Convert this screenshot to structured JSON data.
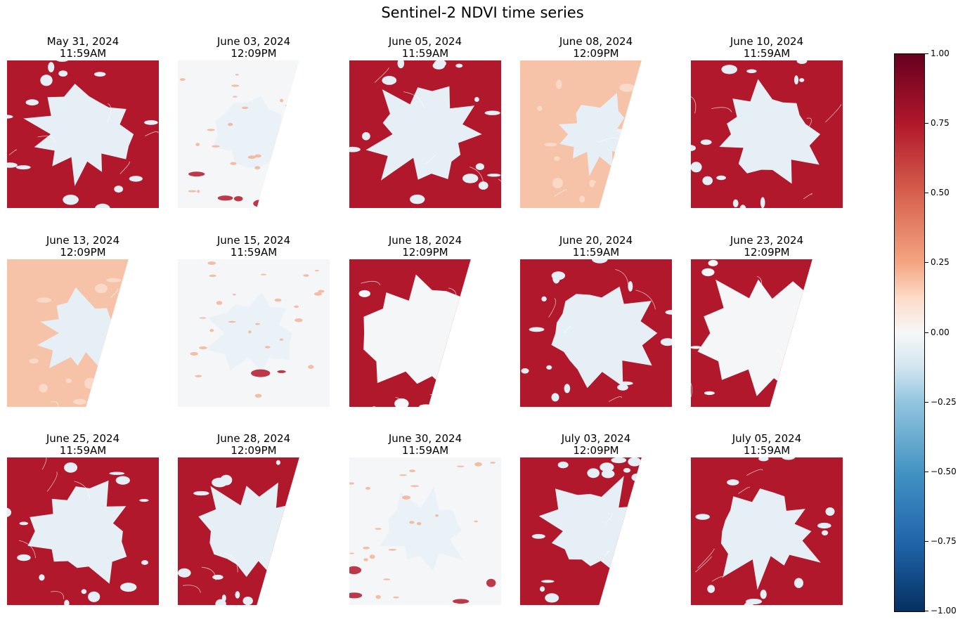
{
  "chart_data": {
    "type": "heatmap",
    "title": "Sentinel-2 NDVI time series",
    "layout": {
      "rows": 3,
      "columns": 5
    },
    "panels": [
      {
        "date": "May 31, 2024",
        "time": "11:59AM",
        "coverage": "full",
        "pattern": "vegetated"
      },
      {
        "date": "June 03, 2024",
        "time": "12:09PM",
        "coverage": "partial",
        "pattern": "cloudy"
      },
      {
        "date": "June 05, 2024",
        "time": "11:59AM",
        "coverage": "full",
        "pattern": "vegetated"
      },
      {
        "date": "June 08, 2024",
        "time": "12:09PM",
        "coverage": "partial",
        "pattern": "hazy"
      },
      {
        "date": "June 10, 2024",
        "time": "11:59AM",
        "coverage": "full",
        "pattern": "vegetated"
      },
      {
        "date": "June 13, 2024",
        "time": "12:09PM",
        "coverage": "partial",
        "pattern": "hazy"
      },
      {
        "date": "June 15, 2024",
        "time": "11:59AM",
        "coverage": "full",
        "pattern": "cloudy"
      },
      {
        "date": "June 18, 2024",
        "time": "12:09PM",
        "coverage": "partial",
        "pattern": "mixed"
      },
      {
        "date": "June 20, 2024",
        "time": "11:59AM",
        "coverage": "full",
        "pattern": "vegetated"
      },
      {
        "date": "June 23, 2024",
        "time": "12:09PM",
        "coverage": "partial",
        "pattern": "mixed"
      },
      {
        "date": "June 25, 2024",
        "time": "11:59AM",
        "coverage": "full",
        "pattern": "vegetated"
      },
      {
        "date": "June 28, 2024",
        "time": "12:09PM",
        "coverage": "partial",
        "pattern": "vegetated"
      },
      {
        "date": "June 30, 2024",
        "time": "11:59AM",
        "coverage": "full",
        "pattern": "cloudy"
      },
      {
        "date": "July 03, 2024",
        "time": "12:09PM",
        "coverage": "partial",
        "pattern": "vegetated"
      },
      {
        "date": "July 05, 2024",
        "time": "11:59AM",
        "coverage": "full",
        "pattern": "vegetated"
      }
    ],
    "colorbar": {
      "colormap": "RdBu_r",
      "range": [
        -1.0,
        1.0
      ],
      "ticks": [
        1.0,
        0.75,
        0.5,
        0.25,
        0.0,
        -0.25,
        -0.5,
        -0.75,
        -1.0
      ],
      "tick_labels": [
        "1.00",
        "0.75",
        "0.50",
        "0.25",
        "0.00",
        "−0.25",
        "−0.50",
        "−0.75",
        "−1.00"
      ]
    },
    "colors": {
      "vegetation": "#b2182b",
      "snow_ice": "#e6eff6",
      "cloud": "#f4f6f8",
      "haze": "#f7c3a8"
    }
  }
}
